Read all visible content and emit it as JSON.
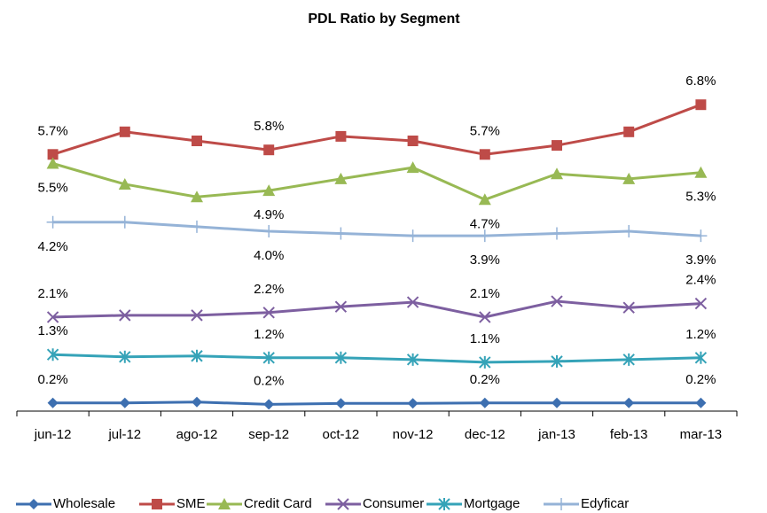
{
  "chart_data": {
    "type": "line",
    "title": "PDL Ratio by Segment",
    "categories": [
      "jun-12",
      "jul-12",
      "ago-12",
      "sep-12",
      "oct-12",
      "nov-12",
      "dec-12",
      "jan-13",
      "feb-13",
      "mar-13"
    ],
    "ylim": [
      0,
      8
    ],
    "series": [
      {
        "name": "Wholesale",
        "color": "#3d6fb0",
        "marker": "diamond",
        "label_position": "above",
        "values": [
          0.2,
          0.2,
          0.22,
          0.17,
          0.19,
          0.19,
          0.2,
          0.2,
          0.2,
          0.2
        ],
        "value_labels": [
          "0.2%",
          null,
          null,
          "0.2%",
          null,
          null,
          "0.2%",
          null,
          null,
          "0.2%"
        ]
      },
      {
        "name": "SME",
        "color": "#be4b48",
        "marker": "square",
        "label_position": "above",
        "values": [
          5.7,
          6.2,
          6.0,
          5.8,
          6.1,
          6.0,
          5.7,
          5.9,
          6.2,
          6.8
        ],
        "value_labels": [
          "5.7%",
          null,
          null,
          "5.8%",
          null,
          null,
          "5.7%",
          null,
          null,
          "6.8%"
        ]
      },
      {
        "name": "Credit Card",
        "color": "#98b954",
        "marker": "triangle",
        "label_position": "below",
        "values": [
          5.5,
          5.04,
          4.76,
          4.9,
          5.16,
          5.41,
          4.7,
          5.27,
          5.16,
          5.3
        ],
        "value_labels": [
          "5.5%",
          null,
          null,
          "4.9%",
          null,
          null,
          "4.7%",
          null,
          null,
          "5.3%"
        ]
      },
      {
        "name": "Consumer",
        "color": "#7d5fa0",
        "marker": "x",
        "label_position": "above",
        "values": [
          2.1,
          2.14,
          2.14,
          2.2,
          2.33,
          2.43,
          2.1,
          2.45,
          2.31,
          2.4
        ],
        "value_labels": [
          "2.1%",
          null,
          null,
          "2.2%",
          null,
          null,
          "2.1%",
          null,
          null,
          "2.4%"
        ]
      },
      {
        "name": "Mortgage",
        "color": "#35a3b8",
        "marker": "asterisk",
        "label_position": "above",
        "values": [
          1.27,
          1.22,
          1.24,
          1.2,
          1.2,
          1.16,
          1.1,
          1.12,
          1.16,
          1.2
        ],
        "value_labels": [
          "1.3%",
          null,
          null,
          "1.2%",
          null,
          null,
          "1.1%",
          null,
          null,
          "1.2%"
        ]
      },
      {
        "name": "Edyficar",
        "color": "#95b3d7",
        "marker": "plus",
        "label_position": "below",
        "values": [
          4.2,
          4.2,
          4.1,
          4.0,
          3.95,
          3.9,
          3.9,
          3.95,
          4.0,
          3.9
        ],
        "value_labels": [
          "4.2%",
          null,
          null,
          "4.0%",
          null,
          null,
          "3.9%",
          null,
          null,
          "3.9%"
        ]
      }
    ]
  }
}
